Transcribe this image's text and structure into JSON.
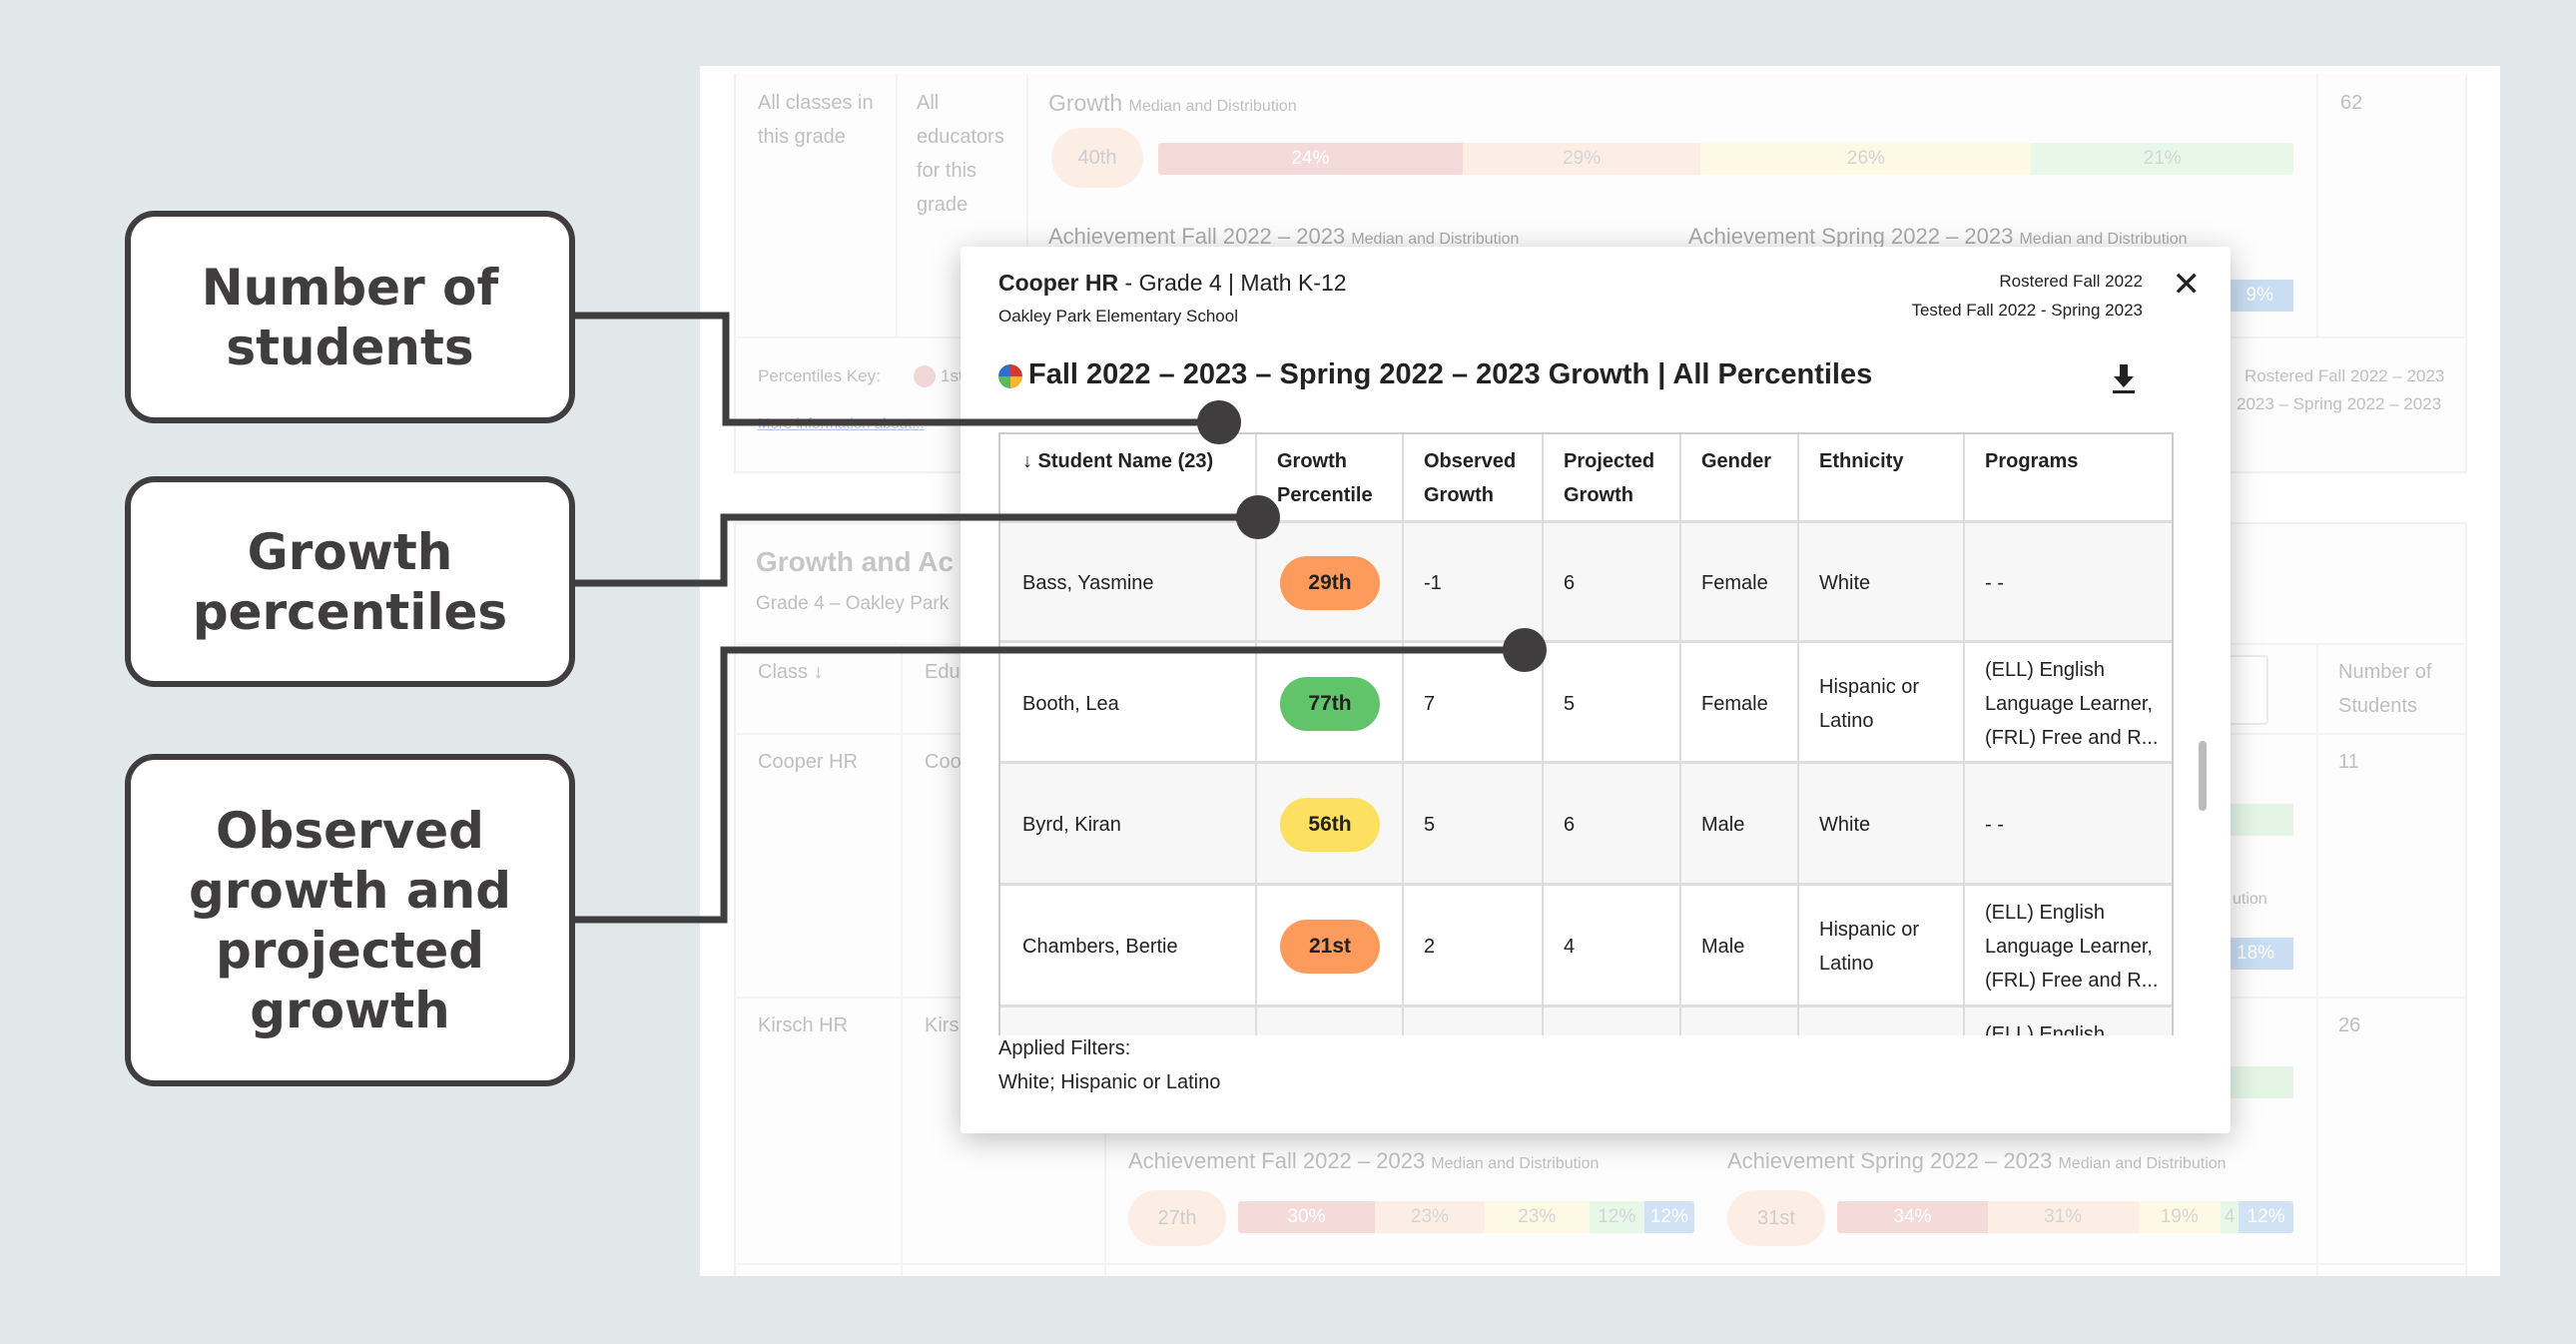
{
  "background": {
    "top_row": {
      "class": "All classes in this grade",
      "educator": "All educators for this grade",
      "growth_title": "Growth",
      "growth_sub": "Median and Distribution",
      "median": "40th",
      "distribution": [
        "24%",
        "29%",
        "26%",
        "21%"
      ],
      "count": "62",
      "ach_fall_title": "Achievement Fall 2022 – 2023",
      "ach_spring_title": "Achievement Spring 2022 – 2023",
      "ach_sub": "Median and Distribution",
      "spring_partial": "9%"
    },
    "key": {
      "label": "Percentiles Key:",
      "first": "1st",
      "link": "More information about...",
      "rostered": "Rostered Fall 2022 – 2023",
      "tested": "2023 – Spring 2022 – 2023"
    },
    "section": {
      "title": "Growth and Ac",
      "subtitle": "Grade 4 – Oakley Park",
      "col_class": "Class ↓",
      "col_edu": "Edu",
      "col_students": "Number of Students"
    },
    "rows": [
      {
        "class": "Cooper HR",
        "edu": "Coo",
        "count": "11",
        "partial": "18%",
        "ution": "ution"
      },
      {
        "class": "Kirsch HR",
        "edu": "Kirs",
        "count": "26"
      }
    ],
    "bottom": {
      "fall_title": "Achievement Fall 2022 – 2023",
      "spring_title": "Achievement Spring 2022 – 2023",
      "sub": "Median and Distribution",
      "fall_median": "27th",
      "fall_dist": [
        "30%",
        "23%",
        "23%",
        "12%",
        "12%"
      ],
      "spring_median": "31st",
      "spring_dist": [
        "34%",
        "31%",
        "19%",
        "4",
        "12%"
      ]
    }
  },
  "callouts": [
    "Number of students",
    "Growth percentiles",
    "Observed growth and projected growth"
  ],
  "modal": {
    "class_name": "Cooper HR",
    "grade_subject": " - Grade 4 | Math K-12",
    "school": "Oakley Park Elementary School",
    "rostered": "Rostered Fall 2022",
    "tested": "Tested Fall 2022 - Spring 2023",
    "title": "Fall 2022 – 2023 – Spring 2022 – 2023 Growth | All Percentiles",
    "columns": [
      "↓ Student Name (23)",
      "Growth Percentile",
      "Observed Growth",
      "Projected Growth",
      "Gender",
      "Ethnicity",
      "Programs"
    ],
    "rows": [
      {
        "name": "Bass, Yasmine",
        "pct": "29th",
        "color": "#fd9b5d",
        "obs": "-1",
        "proj": "6",
        "gender": "Female",
        "eth": "White",
        "prog": "- -"
      },
      {
        "name": "Booth, Lea",
        "pct": "77th",
        "color": "#62c46a",
        "obs": "7",
        "proj": "5",
        "gender": "Female",
        "eth": "Hispanic or Latino",
        "prog": "(ELL) English Language Learner, (FRL) Free and R..."
      },
      {
        "name": "Byrd, Kiran",
        "pct": "56th",
        "color": "#fde05f",
        "obs": "5",
        "proj": "6",
        "gender": "Male",
        "eth": "White",
        "prog": "- -"
      },
      {
        "name": "Chambers, Bertie",
        "pct": "21st",
        "color": "#fd9b5d",
        "obs": "2",
        "proj": "4",
        "gender": "Male",
        "eth": "Hispanic or Latino",
        "prog": "(ELL) English Language Learner, (FRL) Free and R..."
      }
    ],
    "partial_prog": "(ELL) English",
    "filters_label": "Applied Filters:",
    "filters_value": "White; Hispanic or Latino"
  }
}
